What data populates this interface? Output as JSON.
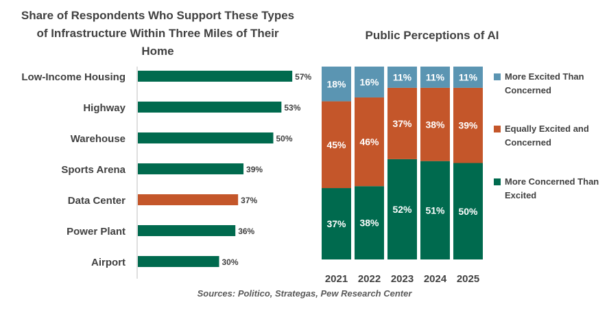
{
  "chart_data": [
    {
      "type": "bar",
      "orientation": "horizontal",
      "title": "Share of Respondents Who Support These Types of Infrastructure Within Three Miles of Their Home",
      "categories": [
        "Low-Income Housing",
        "Highway",
        "Warehouse",
        "Sports Arena",
        "Data Center",
        "Power Plant",
        "Airport"
      ],
      "values": [
        57,
        53,
        50,
        39,
        37,
        36,
        30
      ],
      "data_labels": [
        "57%",
        "53%",
        "50%",
        "39%",
        "37%",
        "36%",
        "30%"
      ],
      "unit": "%",
      "highlight_category": "Data Center",
      "colors": {
        "default": "#006a4e",
        "highlight": "#c4562a"
      }
    },
    {
      "type": "bar",
      "stacked": true,
      "title": "Public Perceptions of AI",
      "categories": [
        "2021",
        "2022",
        "2023",
        "2024",
        "2025"
      ],
      "series": [
        {
          "name": "More Concerned Than Excited",
          "values": [
            37,
            38,
            52,
            51,
            50
          ],
          "labels": [
            "37%",
            "38%",
            "52%",
            "51%",
            "50%"
          ],
          "color": "#006a4e"
        },
        {
          "name": "Equally Excited and Concerned",
          "values": [
            45,
            46,
            37,
            38,
            39
          ],
          "labels": [
            "45%",
            "46%",
            "37%",
            "38%",
            "39%"
          ],
          "color": "#c4562a"
        },
        {
          "name": "More Excited Than Concerned",
          "values": [
            18,
            16,
            11,
            11,
            11
          ],
          "labels": [
            "18%",
            "16%",
            "11%",
            "11%",
            "11%"
          ],
          "color": "#5b95b2"
        }
      ],
      "legend_position": "right",
      "legend_order": [
        "More Excited Than Concerned",
        "Equally Excited and Concerned",
        "More Concerned Than Excited"
      ]
    }
  ],
  "source": "Sources: Politico, Strategas, Pew Research Center"
}
